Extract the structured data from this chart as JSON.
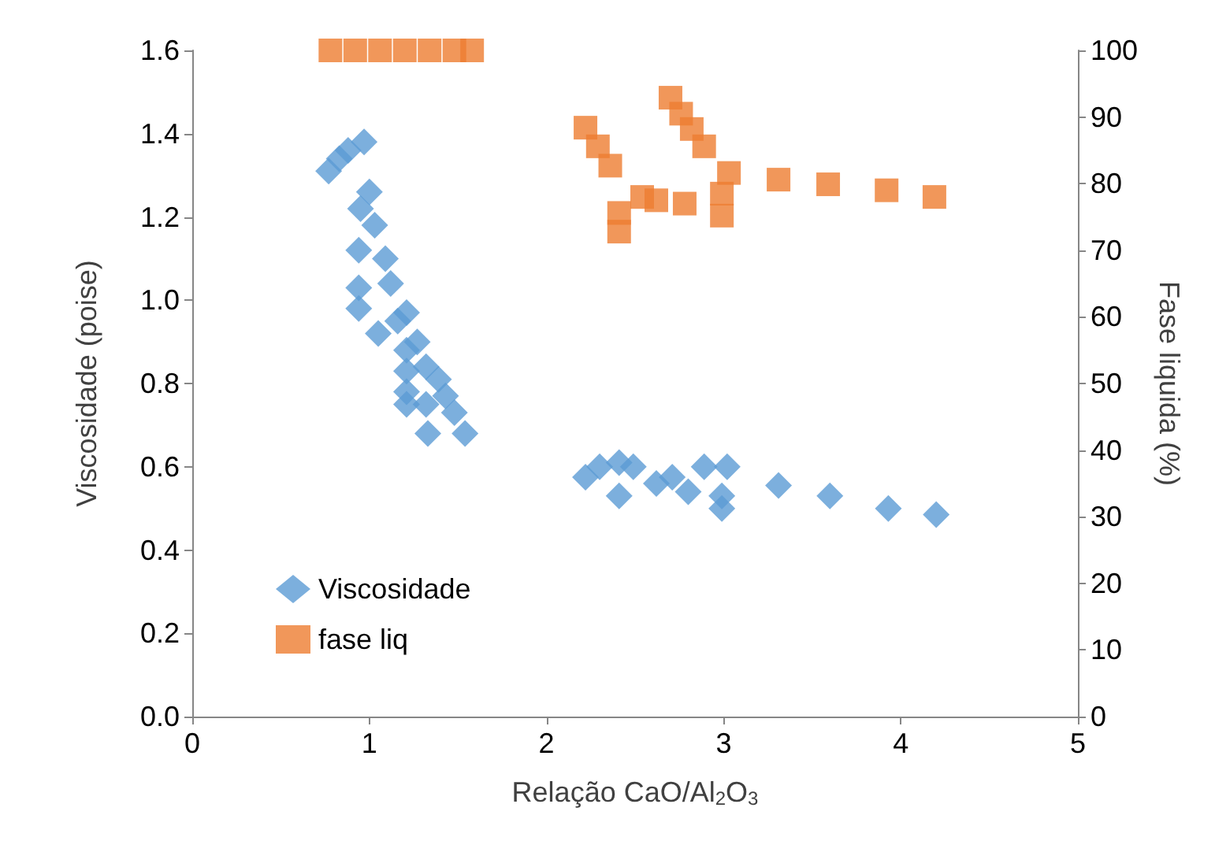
{
  "chart_data": {
    "type": "scatter",
    "xlabel": "Relação CaO/Al$_{2}$O$_{3}$",
    "ylabel": "Viscosidade (poise)",
    "y2label": "Fase liquida (%)",
    "xlim": [
      0,
      5
    ],
    "xticks": [
      0,
      1,
      2,
      3,
      4,
      5
    ],
    "ylim": [
      0,
      1.6
    ],
    "yticks": [
      {
        "value": 0,
        "label": "0.0"
      },
      {
        "value": 0.2,
        "label": "0.2"
      },
      {
        "value": 0.4,
        "label": "0.4"
      },
      {
        "value": 0.6,
        "label": "0.6"
      },
      {
        "value": 0.8,
        "label": "0.8"
      },
      {
        "value": 1.0,
        "label": "1.0"
      },
      {
        "value": 1.2,
        "label": "1.2"
      },
      {
        "value": 1.4,
        "label": "1.4"
      },
      {
        "value": 1.6,
        "label": "1.6"
      }
    ],
    "y2lim": [
      0,
      100
    ],
    "y2ticks": [
      0,
      10,
      20,
      30,
      40,
      50,
      60,
      70,
      80,
      90,
      100
    ],
    "grid": false,
    "legend": "bottom left",
    "series": [
      {
        "name": "Viscosidade",
        "color": "#5b9bd5",
        "marker": "diamond",
        "x": [
          0.77,
          0.83,
          0.88,
          0.97,
          1.0,
          0.95,
          1.03,
          0.94,
          1.09,
          1.12,
          0.94,
          0.94,
          1.21,
          1.05,
          1.16,
          1.27,
          1.21,
          1.32,
          1.21,
          1.39,
          1.21,
          1.43,
          1.21,
          1.32,
          1.48,
          1.33,
          1.54,
          2.22,
          2.3,
          2.41,
          2.49,
          2.41,
          2.62,
          2.71,
          2.8,
          2.89,
          3.02,
          2.99,
          2.99,
          3.31,
          3.6,
          3.93,
          4.2
        ],
        "values": [
          1.31,
          1.34,
          1.36,
          1.38,
          1.26,
          1.22,
          1.18,
          1.12,
          1.1,
          1.04,
          1.03,
          0.98,
          0.97,
          0.92,
          0.95,
          0.9,
          0.88,
          0.84,
          0.83,
          0.81,
          0.78,
          0.77,
          0.75,
          0.75,
          0.73,
          0.68,
          0.68,
          0.575,
          0.6,
          0.61,
          0.6,
          0.53,
          0.56,
          0.575,
          0.54,
          0.6,
          0.6,
          0.5,
          0.53,
          0.555,
          0.53,
          0.5,
          0.485
        ]
      },
      {
        "name": "fase liq",
        "color": "#ed7d31",
        "marker": "square",
        "axis": "y2",
        "x": [
          0.78,
          0.92,
          1.06,
          1.2,
          1.34,
          1.48,
          1.58,
          2.22,
          2.29,
          2.36,
          2.41,
          2.41,
          2.54,
          2.62,
          2.78,
          2.7,
          2.76,
          2.82,
          2.89,
          2.99,
          3.03,
          2.99,
          3.31,
          3.59,
          3.92,
          4.19
        ],
        "values": [
          100,
          100,
          100,
          100,
          100,
          100,
          100,
          88.4,
          85.6,
          82.7,
          72.8,
          75.6,
          78,
          77.5,
          77,
          92.9,
          90.5,
          88.2,
          85.6,
          75.2,
          81.6,
          78.5,
          80.6,
          79.9,
          79,
          78
        ]
      }
    ]
  }
}
